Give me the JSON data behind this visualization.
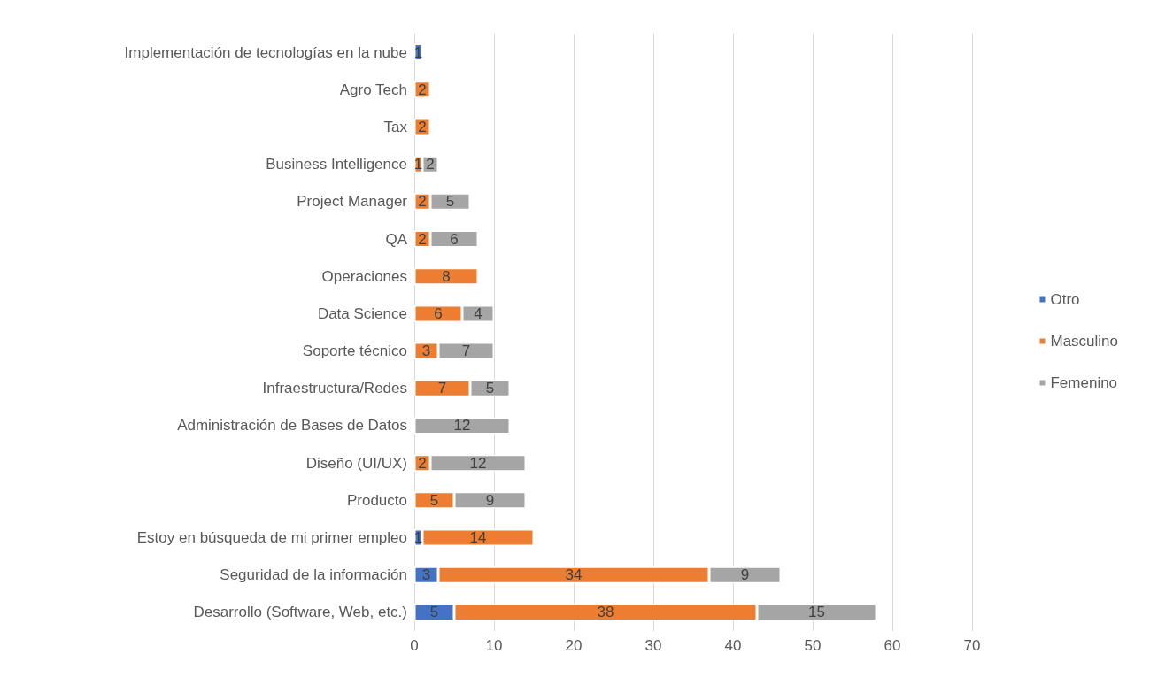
{
  "chart_data": {
    "type": "bar",
    "orientation": "horizontal",
    "stacked": true,
    "data_labels": true,
    "grid": "x",
    "legend": "right",
    "categories": [
      "Implementación de tecnologías en la nube",
      "Agro Tech",
      "Tax",
      "Business Intelligence",
      "Project Manager",
      "QA",
      "Operaciones",
      "Data Science",
      "Soporte técnico",
      "Infraestructura/Redes",
      "Administración de Bases de Datos",
      "Diseño (UI/UX)",
      "Producto",
      "Estoy en búsqueda de mi primer empleo",
      "Seguridad de la información",
      "Desarrollo (Software, Web, etc.)"
    ],
    "xlim": [
      0,
      70
    ],
    "xticks": [
      0,
      10,
      20,
      30,
      40,
      50,
      60,
      70
    ],
    "series": [
      {
        "name": "Otro",
        "color": "#4472c4",
        "values": [
          1,
          null,
          null,
          null,
          null,
          null,
          null,
          null,
          null,
          null,
          null,
          null,
          null,
          1,
          3,
          5
        ]
      },
      {
        "name": "Masculino",
        "color": "#ed7d31",
        "values": [
          null,
          2,
          2,
          1,
          2,
          2,
          8,
          6,
          3,
          7,
          null,
          2,
          5,
          14,
          34,
          38
        ]
      },
      {
        "name": "Femenino",
        "color": "#a5a5a5",
        "values": [
          null,
          null,
          null,
          2,
          5,
          6,
          null,
          4,
          7,
          5,
          12,
          12,
          9,
          null,
          9,
          15
        ]
      }
    ]
  }
}
